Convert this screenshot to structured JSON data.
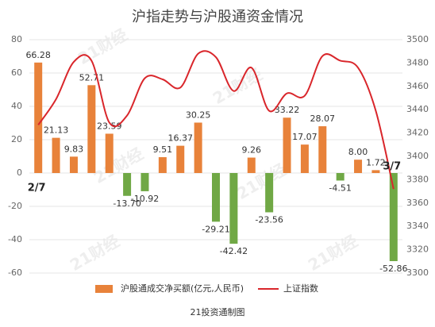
{
  "chart_data": {
    "type": "bar_line",
    "title": "沪指走势与沪股通资金情况",
    "footer": "21投资通制图",
    "watermark": "21财经",
    "categories": [
      "2/7",
      null,
      null,
      null,
      null,
      null,
      null,
      null,
      null,
      null,
      null,
      null,
      null,
      null,
      null,
      null,
      null,
      null,
      null,
      null,
      "3/7"
    ],
    "series": [
      {
        "name": "沪股通成交净买额(亿元,人民币)",
        "color": "#e8823a",
        "negative_color": "#70a845",
        "values": [
          66.28,
          21.13,
          9.83,
          52.71,
          23.59,
          -13.7,
          -10.92,
          9.51,
          16.37,
          30.25,
          -29.21,
          -42.42,
          9.26,
          -23.56,
          33.22,
          17.07,
          28.07,
          -4.51,
          8.0,
          1.72,
          -52.86
        ],
        "value_labels": [
          "66.28",
          "21.13",
          "9.83",
          "52.71",
          "23.59",
          "-13.70",
          "-10.92",
          "9.51",
          "16.37",
          "30.25",
          "-29.21",
          "-42.42",
          "9.26",
          "-23.56",
          "33.22",
          "17.07",
          "28.07",
          "-4.51",
          "8.00",
          "1.72",
          "-52.86"
        ]
      },
      {
        "name": "上证指数",
        "color": "#d9262b",
        "axis": "y2",
        "values": [
          3427,
          3449,
          3481,
          3482,
          3429,
          3435,
          3467,
          3466,
          3459,
          3488,
          3485,
          3456,
          3476,
          3439,
          3454,
          3452,
          3486,
          3482,
          3476,
          3439,
          3372
        ]
      }
    ],
    "ylim": [
      -60,
      80
    ],
    "yticks": [
      -60,
      -40,
      -20,
      0,
      20,
      40,
      60,
      80
    ],
    "y2lim": [
      3300,
      3500
    ],
    "y2ticks": [
      3300,
      3320,
      3340,
      3360,
      3380,
      3400,
      3420,
      3440,
      3460,
      3480,
      3500
    ],
    "grid": true
  }
}
